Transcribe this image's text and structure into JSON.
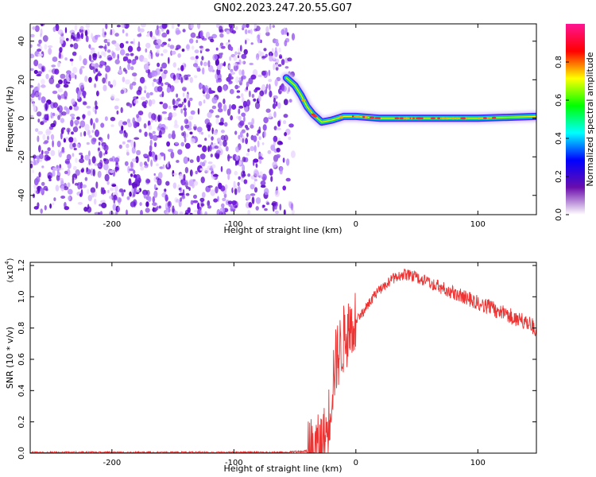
{
  "title": "GN02.2023.247.20.55.G07",
  "chart_data": [
    {
      "type": "heatmap",
      "xlabel": "Height of straight line (km)",
      "ylabel": "Frequency (Hz)",
      "xlim": [
        -267,
        148
      ],
      "ylim": [
        -50,
        49
      ],
      "xticks": [
        {
          "value": -200,
          "label": "-200"
        },
        {
          "value": -100,
          "label": "-100"
        },
        {
          "value": 0,
          "label": "0"
        },
        {
          "value": 100,
          "label": "100"
        }
      ],
      "yticks": [
        {
          "value": -40,
          "label": "-40"
        },
        {
          "value": -20,
          "label": "-20"
        },
        {
          "value": 0,
          "label": "0"
        },
        {
          "value": 20,
          "label": "20"
        },
        {
          "value": 40,
          "label": "40"
        }
      ],
      "noise_region_x": [
        -267,
        -57
      ],
      "signal_track": [
        {
          "x": -57,
          "y": 21
        },
        {
          "x": -50,
          "y": 17
        },
        {
          "x": -45,
          "y": 12
        },
        {
          "x": -40,
          "y": 6
        },
        {
          "x": -35,
          "y": 2
        },
        {
          "x": -28,
          "y": -2
        },
        {
          "x": -20,
          "y": -1
        },
        {
          "x": -10,
          "y": 1
        },
        {
          "x": 0,
          "y": 1
        },
        {
          "x": 20,
          "y": 0
        },
        {
          "x": 60,
          "y": 0
        },
        {
          "x": 100,
          "y": 0
        },
        {
          "x": 148,
          "y": 1
        }
      ],
      "colorbar": {
        "label": "Normalized spectral amplitude",
        "range": [
          0,
          1
        ],
        "ticks": [
          {
            "value": 0.0,
            "label": "0.0"
          },
          {
            "value": 0.2,
            "label": "0.2"
          },
          {
            "value": 0.4,
            "label": "0.4"
          },
          {
            "value": 0.6,
            "label": "0.6"
          },
          {
            "value": 0.8,
            "label": "0.8"
          }
        ],
        "colors": [
          "#ffffff",
          "#6a0dad",
          "#0000ff",
          "#00ffff",
          "#00ff00",
          "#ffff00",
          "#ff0000",
          "#ff1493"
        ]
      }
    },
    {
      "type": "line",
      "xlabel": "Height of straight line (km)",
      "ylabel": "SNR (10 * v/v)",
      "multiplier": "(x10",
      "multiplier_exp": "4",
      "xlim": [
        -267,
        148
      ],
      "ylim": [
        0,
        1.22
      ],
      "xticks": [
        {
          "value": -200,
          "label": "-200"
        },
        {
          "value": -100,
          "label": "-100"
        },
        {
          "value": 0,
          "label": "0"
        },
        {
          "value": 100,
          "label": "100"
        }
      ],
      "yticks": [
        {
          "value": 0.0,
          "label": "0.0"
        },
        {
          "value": 0.2,
          "label": "0.2"
        },
        {
          "value": 0.4,
          "label": "0.4"
        },
        {
          "value": 0.6,
          "label": "0.6"
        },
        {
          "value": 0.8,
          "label": "0.8"
        },
        {
          "value": 1.0,
          "label": "1.0"
        },
        {
          "value": 1.2,
          "label": "1.2"
        }
      ],
      "line_color": "#ee3333",
      "series": [
        {
          "x": [
            -267,
            -200,
            -150,
            -100,
            -60,
            -40,
            -30,
            -25,
            -22,
            -20,
            -18,
            -15,
            -12,
            -10,
            -5,
            0,
            5,
            10,
            15,
            20,
            25,
            30,
            35,
            40,
            45,
            50,
            60,
            70,
            80,
            90,
            100,
            110,
            120,
            130,
            140,
            148
          ],
          "y": [
            0.01,
            0.01,
            0.01,
            0.01,
            0.01,
            0.02,
            0.05,
            0.12,
            0.25,
            0.4,
            0.55,
            0.65,
            0.7,
            0.75,
            0.82,
            0.88,
            0.92,
            0.98,
            1.04,
            1.08,
            1.12,
            1.15,
            1.17,
            1.18,
            1.17,
            1.16,
            1.13,
            1.1,
            1.07,
            1.04,
            1.01,
            0.98,
            0.95,
            0.92,
            0.89,
            0.85
          ]
        }
      ]
    }
  ]
}
